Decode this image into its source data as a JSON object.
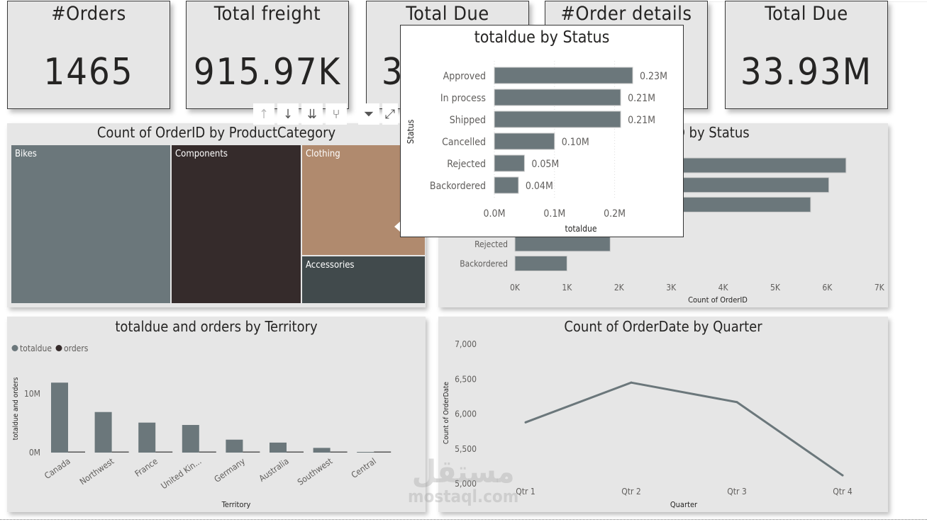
{
  "kpis": [
    {
      "title": "#Orders",
      "value": "1465"
    },
    {
      "title": "Total freight",
      "value": "915.97K"
    },
    {
      "title": "Total Due",
      "value": "33.93M"
    },
    {
      "title": "#Order details",
      "value": ""
    },
    {
      "title": "Total Due",
      "value": "33.93M"
    }
  ],
  "visual_header": {
    "buttons": [
      {
        "name": "drill-up",
        "glyph": "↑"
      },
      {
        "name": "drill-down",
        "glyph": "↓"
      },
      {
        "name": "go-to-next-level",
        "glyph": "⇊"
      },
      {
        "name": "expand-hierarchy",
        "glyph": "⑂"
      },
      {
        "name": "filter",
        "glyph": "⏷"
      },
      {
        "name": "focus-mode",
        "glyph": "⤢"
      }
    ]
  },
  "treemap": {
    "title": "Count of OrderID by ProductCategory",
    "items": [
      {
        "label": "Bikes",
        "color": "#6b777b"
      },
      {
        "label": "Components",
        "color": "#352b2b"
      },
      {
        "label": "Clothing",
        "color": "#b08a6e"
      },
      {
        "label": "Accessories",
        "color": "#414a4c"
      }
    ]
  },
  "tooltip": {
    "title": "totaldue by Status"
  },
  "status_count_title_visible": "D by Status",
  "watermark": {
    "arabic": "مستقل",
    "latin": "mostaql.com"
  },
  "chart_data": [
    {
      "type": "bar",
      "orientation": "horizontal",
      "title": "totaldue by Status",
      "categories": [
        "Approved",
        "In process",
        "Shipped",
        "Cancelled",
        "Rejected",
        "Backordered"
      ],
      "values": [
        0.23,
        0.21,
        0.21,
        0.1,
        0.05,
        0.04
      ],
      "data_labels": [
        "0.23M",
        "0.21M",
        "0.21M",
        "0.10M",
        "0.05M",
        "0.04M"
      ],
      "xlabel": "totaldue",
      "ylabel": "Status",
      "x_ticks": [
        "0.0M",
        "0.1M",
        "0.2M"
      ],
      "xlim": [
        0,
        0.25
      ],
      "unit": "M",
      "color": "#6b777b"
    },
    {
      "type": "bar",
      "orientation": "horizontal",
      "title": "Count of OrderID by Status",
      "categories": [
        "Approved",
        "In process",
        "Shipped",
        "Cancelled",
        "Rejected",
        "Backordered"
      ],
      "values": [
        6.36,
        6.03,
        5.68,
        null,
        1.83,
        1.0
      ],
      "xlabel": "Count of OrderID",
      "x_ticks": [
        "0K",
        "1K",
        "2K",
        "3K",
        "4K",
        "5K",
        "6K",
        "7K"
      ],
      "xlim": [
        0,
        7
      ],
      "unit": "K",
      "color": "#6b777b"
    },
    {
      "type": "bar",
      "title": "totaldue and orders by Territory",
      "categories": [
        "Canada",
        "Northwest",
        "France",
        "United Kin...",
        "Germany",
        "Australia",
        "Southwest",
        "Central"
      ],
      "series": [
        {
          "name": "totaldue",
          "color": "#6b777b",
          "values": [
            11.9,
            6.9,
            5.1,
            4.7,
            2.2,
            1.7,
            0.8,
            0.0
          ]
        },
        {
          "name": "orders",
          "color": "#352b2b",
          "values": [
            0.0,
            0.0,
            0.0,
            0.0,
            0.0,
            0.0,
            0.0,
            0.0
          ]
        }
      ],
      "xlabel": "Territory",
      "ylabel": "totaldue and orders",
      "y_ticks": [
        "0M",
        "10M"
      ],
      "ylim": [
        0,
        12
      ],
      "unit": "M",
      "legend": "top-left"
    },
    {
      "type": "line",
      "title": "Count of OrderDate by Quarter",
      "categories": [
        "Qtr 1",
        "Qtr 2",
        "Qtr 3",
        "Qtr 4"
      ],
      "values": [
        5880,
        6450,
        6170,
        5120
      ],
      "xlabel": "Quarter",
      "ylabel": "Count of OrderDate",
      "y_ticks": [
        "5,000",
        "5,500",
        "6,000",
        "6,500",
        "7,000"
      ],
      "ylim": [
        5000,
        7000
      ],
      "color": "#6b777b"
    }
  ]
}
